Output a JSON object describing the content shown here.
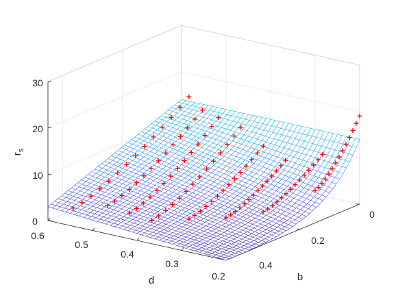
{
  "chart_data": {
    "type": "surface",
    "xlabel": "d",
    "ylabel": "b",
    "zlabel": "r",
    "zlabel_subscript": "s",
    "xlim": [
      0.2,
      0.6
    ],
    "ylim": [
      0,
      0.45
    ],
    "zlim": [
      0,
      30
    ],
    "x_ticks": [
      "0.2",
      "0.3",
      "0.4",
      "0.5",
      "0.6"
    ],
    "y_ticks": [
      "0",
      "0.2",
      "0.4"
    ],
    "z_ticks": [
      "0",
      "10",
      "20",
      "30"
    ],
    "grid": true,
    "colormap": "parula",
    "surface_edge_color": "#5a5ad8",
    "marker_color": "#ff0000",
    "marker_symbol": "+",
    "surface_samples": [
      {
        "d": 0.6,
        "b": 0.45,
        "r": 3
      },
      {
        "d": 0.2,
        "b": 0.45,
        "r": 0
      },
      {
        "d": 0.6,
        "b": 0.0,
        "r": 14
      },
      {
        "d": 0.2,
        "b": 0.0,
        "r": 28
      }
    ],
    "measured_points": {
      "series": [
        {
          "d": 0.55,
          "b_range": [
            0.44,
            0.05
          ],
          "r_range": [
            3.5,
            17
          ]
        },
        {
          "d": 0.5,
          "b_range": [
            0.4,
            0.08
          ],
          "r_range": [
            4,
            16
          ]
        },
        {
          "d": 0.45,
          "b_range": [
            0.4,
            0.1
          ],
          "r_range": [
            3.5,
            16
          ]
        },
        {
          "d": 0.4,
          "b_range": [
            0.4,
            0.1
          ],
          "r_range": [
            3,
            15
          ]
        },
        {
          "d": 0.35,
          "b_range": [
            0.35,
            0.1
          ],
          "r_range": [
            3,
            12
          ]
        },
        {
          "d": 0.3,
          "b_range": [
            0.3,
            0.1
          ],
          "r_range": [
            3,
            10
          ]
        },
        {
          "d": 0.25,
          "b_range": [
            0.25,
            0.05
          ],
          "r_range": [
            4,
            11
          ]
        },
        {
          "d": 0.2,
          "b_range": [
            0.15,
            0.0
          ],
          "r_range": [
            7,
            19
          ]
        }
      ]
    }
  }
}
